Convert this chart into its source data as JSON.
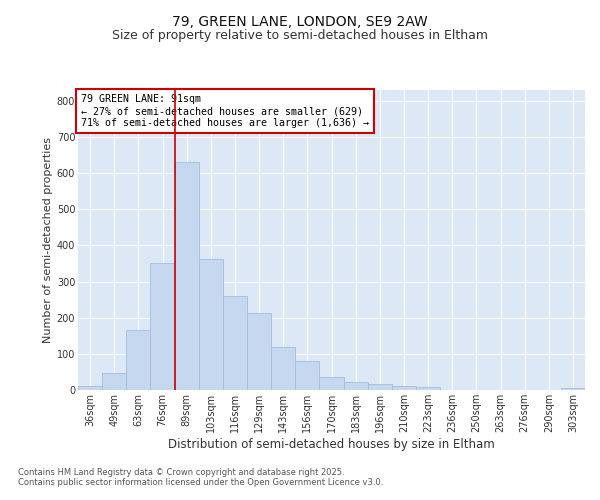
{
  "title1": "79, GREEN LANE, LONDON, SE9 2AW",
  "title2": "Size of property relative to semi-detached houses in Eltham",
  "xlabel": "Distribution of semi-detached houses by size in Eltham",
  "ylabel": "Number of semi-detached properties",
  "categories": [
    "36sqm",
    "49sqm",
    "63sqm",
    "76sqm",
    "89sqm",
    "103sqm",
    "116sqm",
    "129sqm",
    "143sqm",
    "156sqm",
    "170sqm",
    "183sqm",
    "196sqm",
    "210sqm",
    "223sqm",
    "236sqm",
    "250sqm",
    "263sqm",
    "276sqm",
    "290sqm",
    "303sqm"
  ],
  "values": [
    10,
    48,
    165,
    350,
    630,
    362,
    260,
    212,
    120,
    80,
    37,
    22,
    17,
    12,
    8,
    0,
    0,
    0,
    0,
    0,
    5
  ],
  "bar_color": "#c5d8f0",
  "bar_edge_color": "#a0bedd",
  "vline_x_index": 4,
  "vline_color": "#cc0000",
  "annotation_title": "79 GREEN LANE: 91sqm",
  "annotation_line1": "← 27% of semi-detached houses are smaller (629)",
  "annotation_line2": "71% of semi-detached houses are larger (1,636) →",
  "annotation_box_color": "#cc0000",
  "footer1": "Contains HM Land Registry data © Crown copyright and database right 2025.",
  "footer2": "Contains public sector information licensed under the Open Government Licence v3.0.",
  "ylim": [
    0,
    830
  ],
  "yticks": [
    0,
    100,
    200,
    300,
    400,
    500,
    600,
    700,
    800
  ],
  "bg_color": "#ffffff",
  "plot_bg_color": "#dce8f5",
  "title_fontsize": 10,
  "subtitle_fontsize": 9,
  "axis_fontsize": 8,
  "tick_fontsize": 7,
  "footer_fontsize": 6
}
